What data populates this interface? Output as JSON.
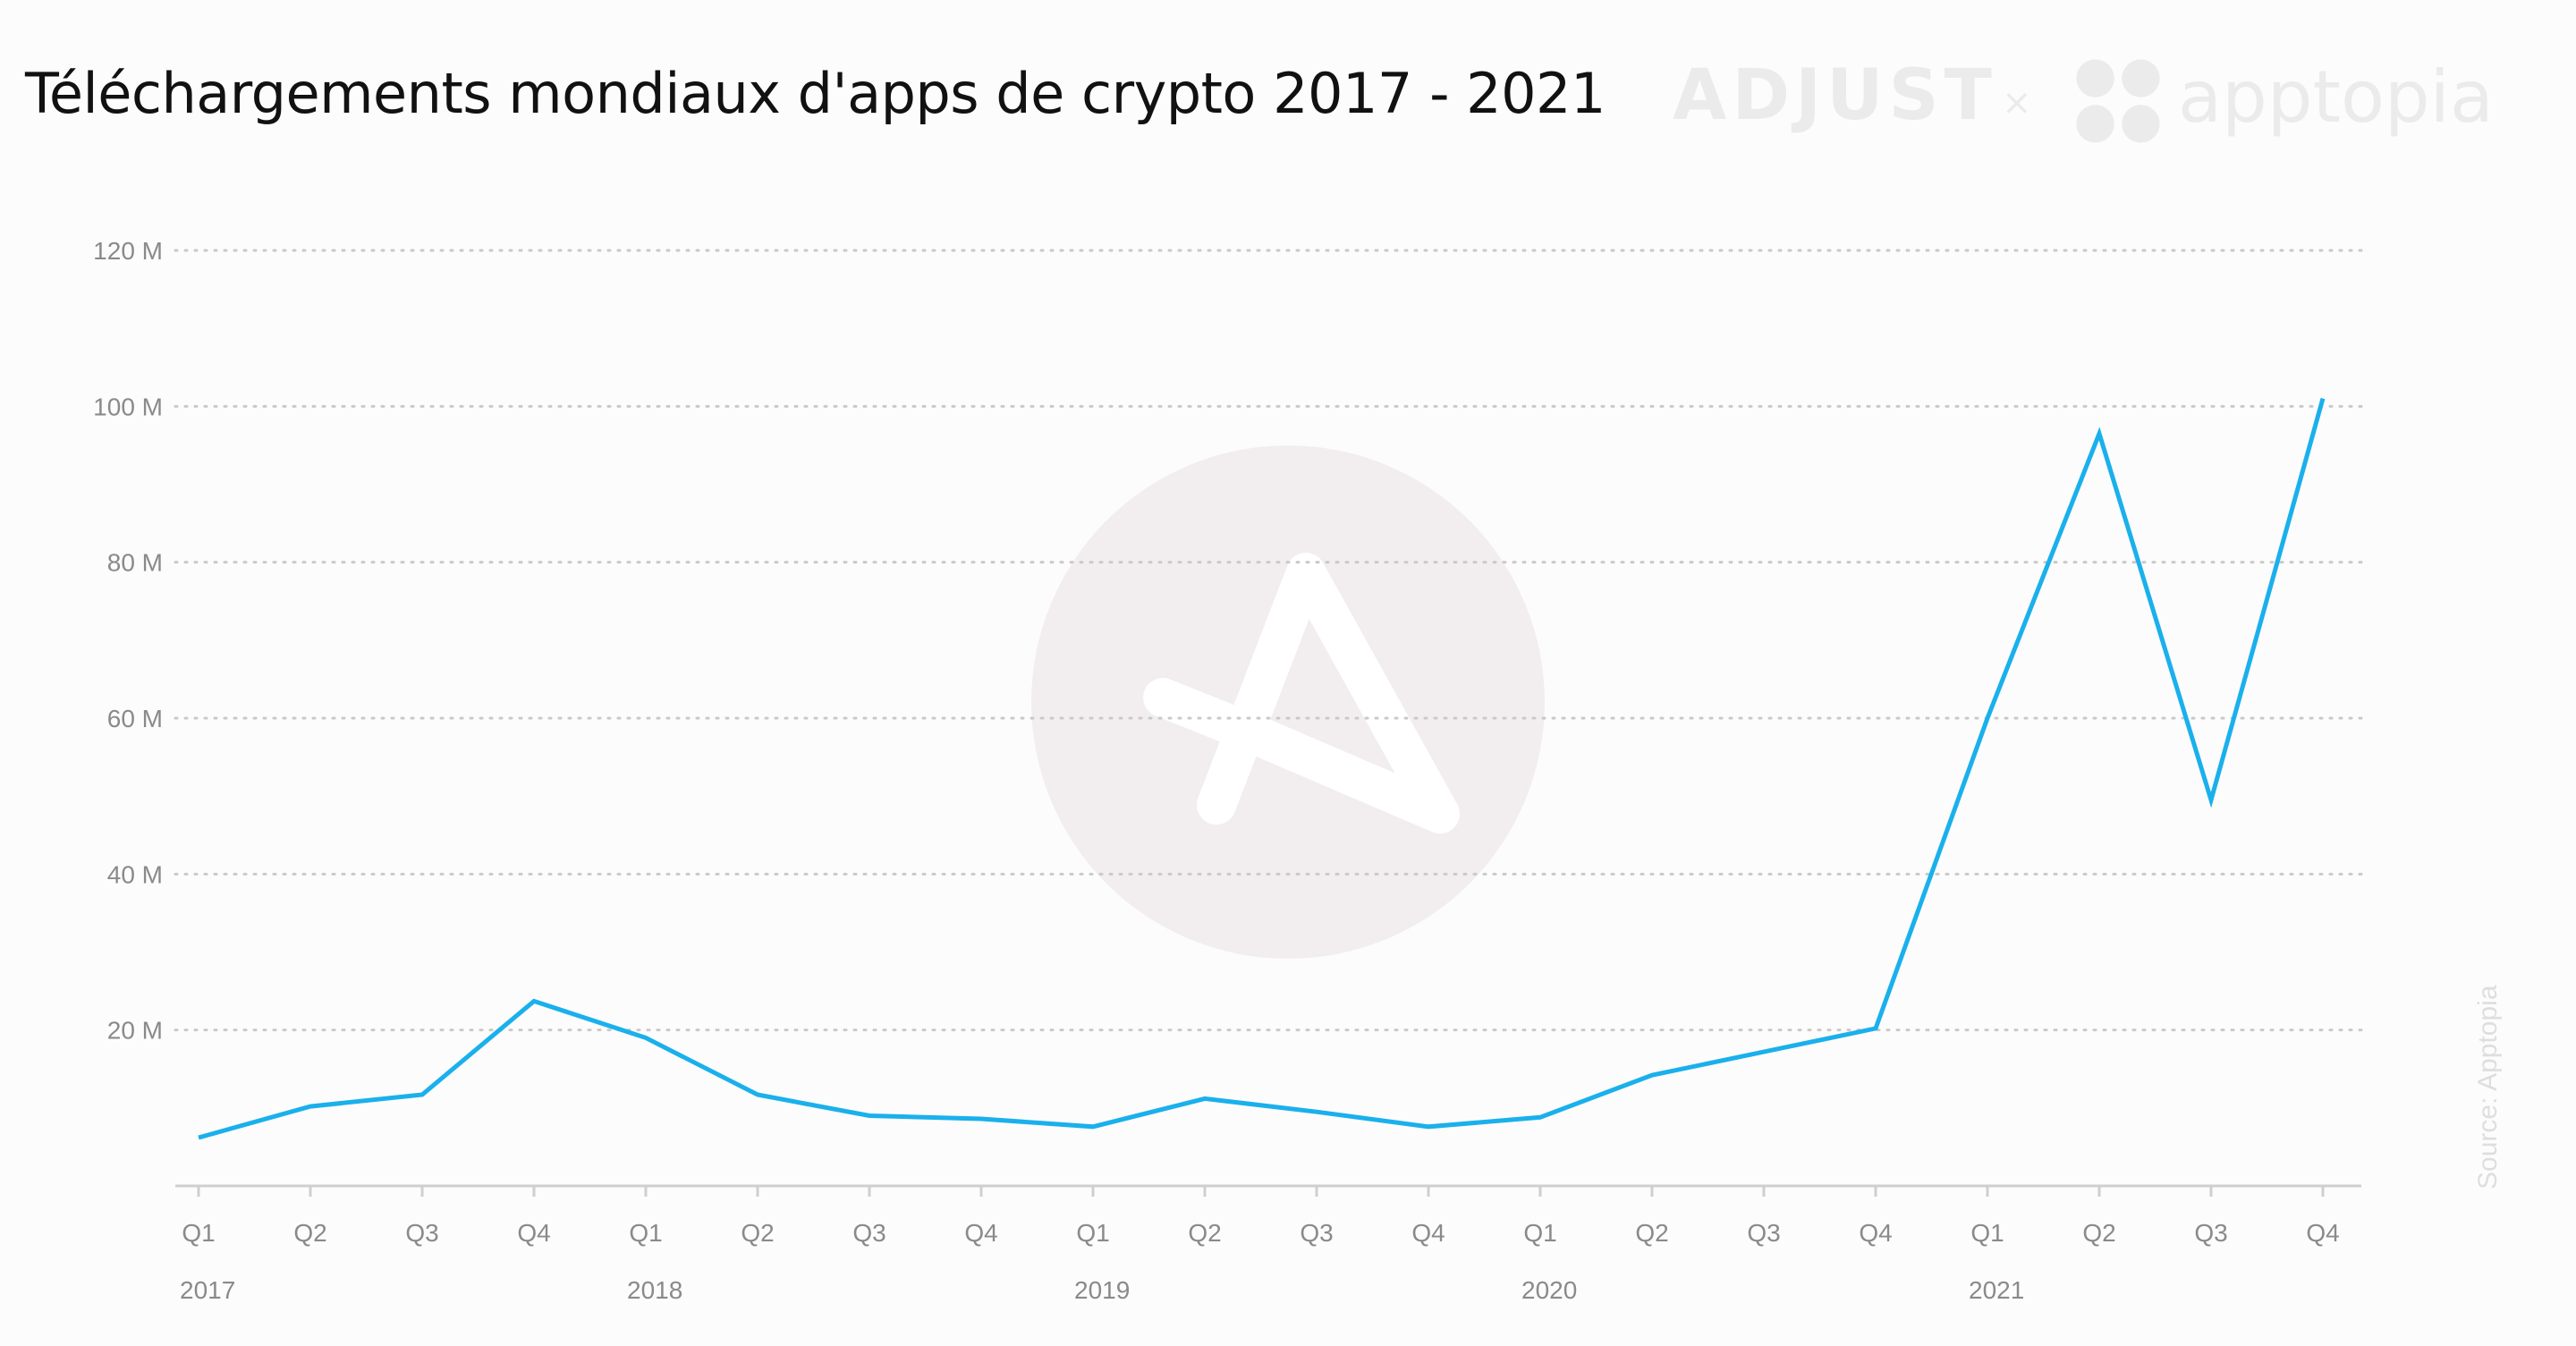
{
  "title": "Téléchargements mondiaux d'apps de crypto 2017 - 2021",
  "brands": {
    "adjust": "ADJUST",
    "separator": "×",
    "apptopia": "apptopia"
  },
  "source": "Source: Apptopia",
  "colors": {
    "line": "#1ab0ec",
    "grid": "#c9c9c9",
    "axis": "#cfcfcf",
    "watermark": "#f2eeef",
    "brand": "#ebebeb"
  },
  "chart_data": {
    "type": "line",
    "title": "Téléchargements mondiaux d'apps de crypto 2017 - 2021",
    "categories": [
      "Q1",
      "Q2",
      "Q3",
      "Q4",
      "Q1",
      "Q2",
      "Q3",
      "Q4",
      "Q1",
      "Q2",
      "Q3",
      "Q4",
      "Q1",
      "Q2",
      "Q3",
      "Q4",
      "Q1",
      "Q2",
      "Q3",
      "Q4"
    ],
    "years": [
      {
        "label": "2017",
        "index": 0
      },
      {
        "label": "2018",
        "index": 4
      },
      {
        "label": "2019",
        "index": 8
      },
      {
        "label": "2020",
        "index": 12
      },
      {
        "label": "2021",
        "index": 16
      }
    ],
    "series": [
      {
        "values": [
          6.2,
          10.2,
          11.7,
          23.7,
          19.0,
          11.7,
          9.0,
          8.6,
          7.6,
          11.2,
          9.5,
          7.6,
          8.8,
          14.2,
          17.2,
          20.2,
          60.0,
          96.5,
          49.5,
          101.0
        ]
      }
    ],
    "y_ticks": [
      {
        "value": 20,
        "label": "20 M"
      },
      {
        "value": 40,
        "label": "40 M"
      },
      {
        "value": 60,
        "label": "60 M"
      },
      {
        "value": 80,
        "label": "80 M"
      },
      {
        "value": 100,
        "label": "100 M"
      },
      {
        "value": 120,
        "label": "120 M"
      }
    ],
    "ylim": [
      0,
      120
    ],
    "grid": true,
    "legend": "none"
  }
}
